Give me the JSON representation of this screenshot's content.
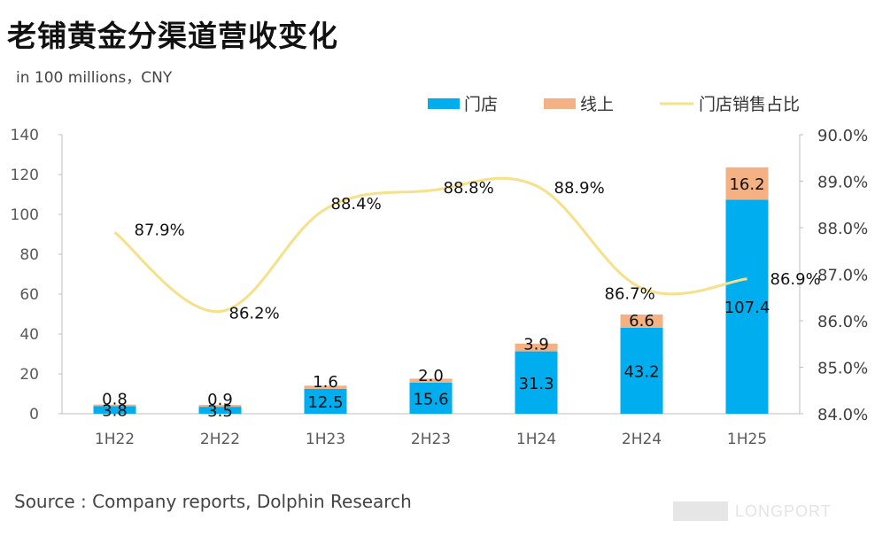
{
  "title": "老铺黄金分渠道营收变化",
  "subtitle": "in 100 millions，CNY",
  "source": "Source : Company reports, Dolphin Research",
  "watermark_text": "LONGPORT",
  "chart_data": {
    "type": "bar",
    "stacked": true,
    "categories": [
      "1H22",
      "2H22",
      "1H23",
      "2H23",
      "1H24",
      "2H24",
      "1H25"
    ],
    "series": [
      {
        "name": "门店",
        "values": [
          3.8,
          3.5,
          12.5,
          15.6,
          31.3,
          43.2,
          107.4
        ],
        "color": "#00aeef"
      },
      {
        "name": "线上",
        "values": [
          0.8,
          0.9,
          1.6,
          2.0,
          3.9,
          6.6,
          16.2
        ],
        "color": "#f4b183"
      }
    ],
    "line_series": {
      "name": "门店销售占比",
      "values": [
        87.9,
        86.2,
        88.4,
        88.8,
        88.9,
        86.7,
        86.9
      ],
      "color": "#f6e08a"
    },
    "line_labels": [
      "87.9%",
      "86.2%",
      "88.4%",
      "88.8%",
      "88.9%",
      "86.7%",
      "86.9%"
    ],
    "bar_labels_store": [
      "3.8",
      "3.5",
      "12.5",
      "15.6",
      "31.3",
      "43.2",
      "107.4"
    ],
    "bar_labels_online": [
      "0.8",
      "0.9",
      "1.6",
      "2.0",
      "3.9",
      "6.6",
      "16.2"
    ],
    "y_left": {
      "min": 0,
      "max": 140,
      "ticks": [
        "0",
        "20",
        "40",
        "60",
        "80",
        "100",
        "120",
        "140"
      ]
    },
    "y_right": {
      "min": 84,
      "max": 90,
      "ticks": [
        "84.0%",
        "85.0%",
        "86.0%",
        "87.0%",
        "88.0%",
        "89.0%",
        "90.0%"
      ]
    },
    "legend_position": "top-right",
    "grid": false
  }
}
